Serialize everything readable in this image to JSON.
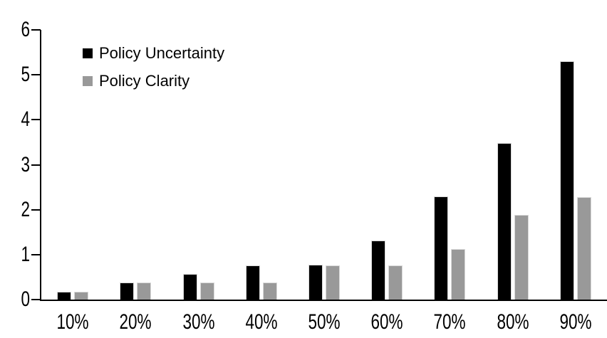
{
  "chart_data": {
    "type": "bar",
    "categories": [
      "10%",
      "20%",
      "30%",
      "40%",
      "50%",
      "60%",
      "70%",
      "80%",
      "90%"
    ],
    "series": [
      {
        "name": "Policy Uncertainty",
        "color": "#000000",
        "values": [
          0.18,
          0.38,
          0.57,
          0.76,
          0.77,
          1.32,
          2.3,
          3.48,
          5.31
        ]
      },
      {
        "name": "Policy Clarity",
        "color": "#999999",
        "values": [
          0.18,
          0.38,
          0.38,
          0.38,
          0.76,
          0.76,
          1.12,
          1.88,
          2.28
        ]
      }
    ],
    "ylim": [
      0,
      6
    ],
    "yticks": [
      0,
      1,
      2,
      3,
      4,
      5,
      6
    ],
    "xlabel": "",
    "ylabel": "",
    "grid": false,
    "legend_position": "top-left-inside",
    "axis_color": "#000000",
    "bar_border_color": "#d9d9d9",
    "background": "#ffffff"
  }
}
